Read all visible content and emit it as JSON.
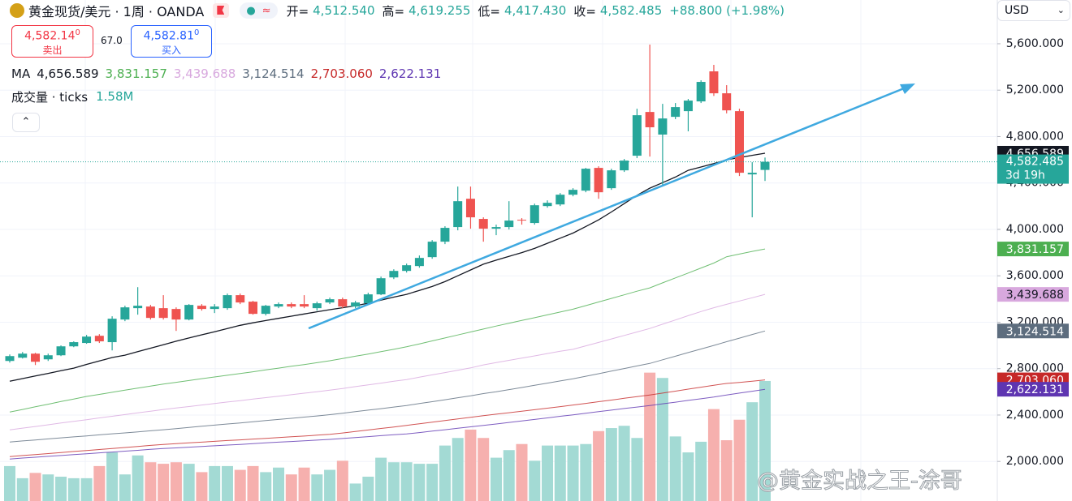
{
  "header": {
    "symbol": "黄金现货/美元 · 1周 · OANDA",
    "ohlc": [
      {
        "label": "开=",
        "value": "4,512.540"
      },
      {
        "label": "高=",
        "value": "4,619.255"
      },
      {
        "label": "低=",
        "value": "4,417.430"
      },
      {
        "label": "收=",
        "value": "4,582.485"
      }
    ],
    "change": "+88.800 (+1.98%)"
  },
  "trade": {
    "sell_price": "4,582.14",
    "sell_price_sup": "0",
    "sell_label": "卖出",
    "spread": "67.0",
    "buy_price": "4,582.81",
    "buy_price_sup": "0",
    "buy_label": "买入"
  },
  "currency": "USD",
  "watermark": "@黄金实战之王-涂哥",
  "chart_data": {
    "type": "candlestick",
    "ma_label": "MA",
    "volume_title": "成交量 · ticks",
    "ylim": [
      1659,
      5977
    ],
    "yticks": [
      {
        "value": 2000,
        "label": "2,000.000"
      },
      {
        "value": 2400,
        "label": "2,400.000"
      },
      {
        "value": 2800,
        "label": "2,800.000"
      },
      {
        "value": 3200,
        "label": "3,200.000"
      },
      {
        "value": 3600,
        "label": "3,600.000"
      },
      {
        "value": 4000,
        "label": "4,000.000"
      },
      {
        "value": 4400,
        "label": "4,400.000"
      },
      {
        "value": 4800,
        "label": "4,800.000"
      },
      {
        "value": 5200,
        "label": "5,200.000"
      },
      {
        "value": 5600,
        "label": "5,600.000"
      }
    ],
    "grid": true,
    "up_color": "#26a69a",
    "down_color": "#ef5350",
    "countdown": "3d 19h",
    "candles": {
      "open": [
        2866,
        2894,
        2929,
        2880,
        2915,
        2992,
        3021,
        3083,
        3028,
        3223,
        3321,
        3335,
        3321,
        3314,
        3223,
        3342,
        3314,
        3321,
        3433,
        3377,
        3272,
        3335,
        3356,
        3356,
        3321,
        3370,
        3398,
        3335,
        3363,
        3440,
        3586,
        3642,
        3684,
        3761,
        3894,
        4020,
        4264,
        4090,
        4006,
        4020,
        4083,
        4055,
        4201,
        4215,
        4299,
        4334,
        4530,
        4355,
        4509,
        4635,
        5012,
        4817,
        4970,
        5019,
        5103,
        5362,
        5173,
        5019,
        4474,
        4512.54
      ],
      "high": [
        2922,
        2943,
        2936,
        2929,
        3000,
        3035,
        3090,
        3097,
        3251,
        3342,
        3502,
        3349,
        3433,
        3328,
        3356,
        3356,
        3356,
        3447,
        3447,
        3384,
        3349,
        3370,
        3370,
        3433,
        3377,
        3412,
        3412,
        3384,
        3454,
        3593,
        3656,
        3705,
        3775,
        3908,
        4027,
        4369,
        4369,
        4104,
        4041,
        4243,
        4097,
        4222,
        4250,
        4313,
        4355,
        4530,
        4544,
        4523,
        4607,
        5040,
        5593,
        5082,
        5089,
        5124,
        5285,
        5418,
        5243,
        5040,
        4579,
        4619.255
      ],
      "low": [
        2852,
        2887,
        2831,
        2866,
        2908,
        2985,
        3014,
        3021,
        2957,
        3209,
        3265,
        3223,
        3223,
        3125,
        3216,
        3300,
        3279,
        3307,
        3356,
        3265,
        3258,
        3321,
        3321,
        3321,
        3300,
        3356,
        3321,
        3321,
        3349,
        3433,
        3572,
        3628,
        3670,
        3747,
        3873,
        3992,
        4006,
        3894,
        3950,
        3999,
        4041,
        4041,
        4187,
        4201,
        4285,
        4320,
        4264,
        4341,
        4495,
        4614,
        4628,
        4383,
        4950,
        4845,
        5089,
        5150,
        5000,
        4460,
        4104,
        4417.43
      ],
      "close": [
        2908,
        2929,
        2859,
        2915,
        2992,
        3028,
        3076,
        3035,
        3230,
        3328,
        3342,
        3237,
        3237,
        3223,
        3349,
        3314,
        3335,
        3433,
        3370,
        3272,
        3342,
        3356,
        3335,
        3335,
        3363,
        3398,
        3335,
        3370,
        3440,
        3579,
        3642,
        3691,
        3754,
        3894,
        4013,
        4243,
        4104,
        4006,
        4020,
        4076,
        4076,
        4208,
        4229,
        4299,
        4341,
        4523,
        4320,
        4509,
        4593,
        4984,
        4880,
        4956,
        5054,
        5110,
        5271,
        5173,
        5026,
        4488,
        4488,
        4582.485
      ]
    },
    "volume": {
      "values": [
        0.46,
        0.3,
        0.37,
        0.35,
        0.32,
        0.3,
        0.3,
        0.46,
        0.64,
        0.35,
        0.6,
        0.51,
        0.49,
        0.51,
        0.49,
        0.38,
        0.46,
        0.46,
        0.41,
        0.46,
        0.38,
        0.44,
        0.35,
        0.44,
        0.35,
        0.41,
        0.53,
        0.23,
        0.32,
        0.57,
        0.51,
        0.51,
        0.49,
        0.49,
        0.73,
        0.83,
        0.94,
        0.83,
        0.57,
        0.67,
        0.75,
        0.53,
        0.73,
        0.73,
        0.73,
        0.75,
        0.92,
        0.96,
        0.99,
        0.83,
        1.69,
        1.62,
        0.85,
        0.64,
        0.78,
        1.21,
        0.8,
        1.07,
        1.3,
        1.58
      ],
      "last_label": "1.58M",
      "up_color": "#a3dad4",
      "down_color": "#f6b0ae"
    },
    "series": [
      {
        "color": "#131722",
        "last_label": "4,656.589",
        "values": [
          2692,
          2714,
          2737,
          2759,
          2782,
          2804,
          2836,
          2866,
          2896,
          2916,
          2946,
          2976,
          3006,
          3036,
          3064,
          3091,
          3118,
          3146,
          3173,
          3195,
          3214,
          3233,
          3252,
          3271,
          3290,
          3308,
          3325,
          3342,
          3364,
          3390,
          3416,
          3440,
          3474,
          3508,
          3550,
          3600,
          3650,
          3700,
          3735,
          3768,
          3800,
          3836,
          3880,
          3924,
          3968,
          4025,
          4082,
          4150,
          4222,
          4294,
          4355,
          4403,
          4451,
          4509,
          4538,
          4567,
          4600,
          4619,
          4638,
          4656.589
        ]
      },
      {
        "color": "#4caf50",
        "last_label": "3,831.157",
        "values": [
          2426,
          2448,
          2471,
          2493,
          2516,
          2538,
          2560,
          2578,
          2596,
          2614,
          2632,
          2650,
          2667,
          2682,
          2697,
          2713,
          2728,
          2743,
          2758,
          2773,
          2789,
          2804,
          2820,
          2835,
          2851,
          2868,
          2887,
          2907,
          2926,
          2946,
          2966,
          2988,
          3013,
          3039,
          3064,
          3090,
          3116,
          3141,
          3167,
          3191,
          3215,
          3239,
          3263,
          3288,
          3312,
          3343,
          3374,
          3405,
          3436,
          3467,
          3496,
          3539,
          3582,
          3624,
          3667,
          3710,
          3764,
          3787,
          3810,
          3831.157
        ]
      },
      {
        "color": "#d8a8de",
        "last_label": "3,439.688",
        "values": [
          2272,
          2287,
          2301,
          2316,
          2331,
          2345,
          2360,
          2375,
          2389,
          2404,
          2419,
          2433,
          2448,
          2461,
          2473,
          2486,
          2499,
          2512,
          2524,
          2537,
          2550,
          2562,
          2575,
          2588,
          2600,
          2614,
          2629,
          2645,
          2660,
          2675,
          2691,
          2706,
          2726,
          2746,
          2766,
          2786,
          2806,
          2832,
          2852,
          2871,
          2891,
          2910,
          2930,
          2950,
          2966,
          2996,
          3026,
          3056,
          3086,
          3116,
          3146,
          3183,
          3219,
          3256,
          3292,
          3325,
          3354,
          3383,
          3411,
          3439.688
        ]
      },
      {
        "color": "#5d6d7e",
        "last_label": "3,124.514",
        "values": [
          2168,
          2177,
          2185,
          2194,
          2203,
          2212,
          2220,
          2229,
          2238,
          2246,
          2255,
          2264,
          2273,
          2283,
          2293,
          2303,
          2313,
          2323,
          2332,
          2342,
          2352,
          2362,
          2372,
          2382,
          2392,
          2403,
          2416,
          2429,
          2442,
          2455,
          2469,
          2482,
          2499,
          2515,
          2532,
          2549,
          2565,
          2585,
          2600,
          2619,
          2637,
          2656,
          2675,
          2694,
          2712,
          2734,
          2756,
          2778,
          2801,
          2823,
          2845,
          2876,
          2907,
          2938,
          2969,
          3000,
          3032,
          3063,
          3094,
          3124.514
        ]
      },
      {
        "color": "#c62828",
        "last_label": "2,703.060",
        "values": [
          2042,
          2051,
          2059,
          2068,
          2077,
          2086,
          2094,
          2103,
          2112,
          2120,
          2129,
          2138,
          2147,
          2153,
          2160,
          2166,
          2173,
          2180,
          2186,
          2193,
          2199,
          2206,
          2213,
          2219,
          2226,
          2233,
          2245,
          2258,
          2271,
          2284,
          2297,
          2311,
          2325,
          2339,
          2353,
          2367,
          2381,
          2394,
          2407,
          2420,
          2433,
          2446,
          2459,
          2472,
          2486,
          2500,
          2515,
          2529,
          2544,
          2558,
          2573,
          2589,
          2606,
          2623,
          2640,
          2657,
          2672,
          2681,
          2692,
          2703.06
        ]
      },
      {
        "color": "#5e35b1",
        "last_label": "2,622.131",
        "values": [
          2021,
          2029,
          2036,
          2044,
          2051,
          2059,
          2066,
          2074,
          2081,
          2089,
          2096,
          2104,
          2111,
          2117,
          2123,
          2129,
          2135,
          2141,
          2147,
          2153,
          2160,
          2166,
          2172,
          2178,
          2184,
          2190,
          2198,
          2206,
          2214,
          2222,
          2230,
          2237,
          2249,
          2261,
          2273,
          2286,
          2298,
          2310,
          2323,
          2336,
          2349,
          2362,
          2375,
          2389,
          2402,
          2416,
          2429,
          2442,
          2456,
          2469,
          2482,
          2497,
          2511,
          2526,
          2540,
          2555,
          2573,
          2589,
          2605,
          2622.131
        ]
      }
    ]
  }
}
